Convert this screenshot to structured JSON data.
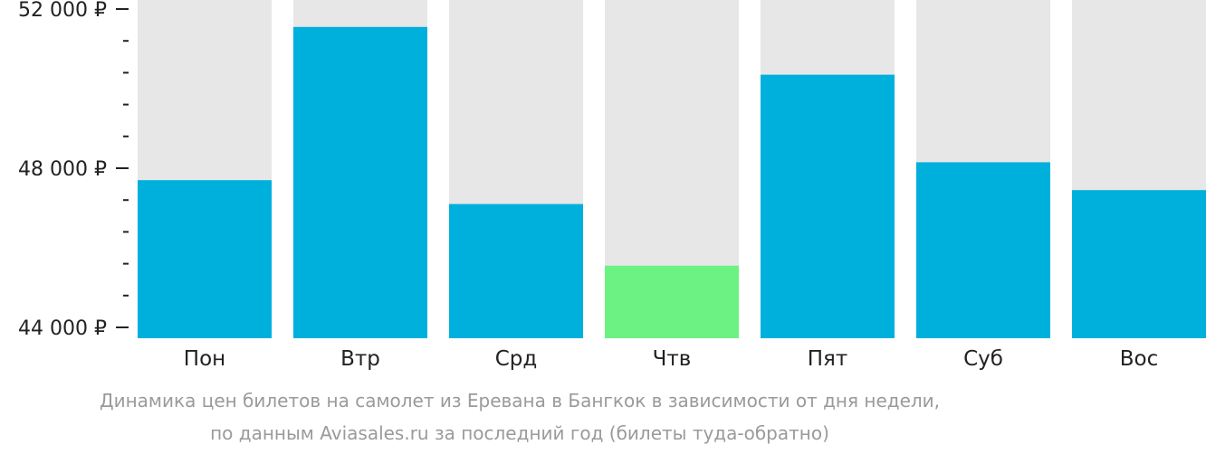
{
  "chart_data": {
    "type": "bar",
    "categories": [
      "Пон",
      "Втр",
      "Срд",
      "Чтв",
      "Пят",
      "Суб",
      "Вос"
    ],
    "values": [
      47700,
      51550,
      47100,
      45550,
      50350,
      48150,
      47450
    ],
    "ylim": [
      44000,
      52000
    ],
    "y_ticks": [
      {
        "value": 52000,
        "label": "52 000 ₽"
      },
      {
        "value": 48000,
        "label": "48 000 ₽"
      },
      {
        "value": 44000,
        "label": "44 000 ₽"
      }
    ],
    "minor_tick_step": 800,
    "colors": {
      "bar": "#00b0dc",
      "lowest_bar": "#6cf282",
      "track": "#e7e7e7",
      "axis": "#222222"
    },
    "highlight_index": 3
  },
  "caption": {
    "line1": "Динамика цен билетов на самолет из Еревана в Бангкок в зависимости от дня недели,",
    "line2": "по данным Aviasales.ru за последний год (билеты туда-обратно)"
  }
}
